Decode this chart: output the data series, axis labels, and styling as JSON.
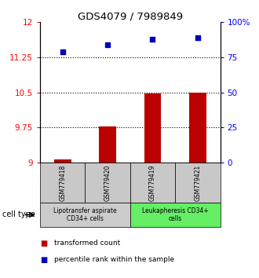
{
  "title": "GDS4079 / 7989849",
  "samples": [
    "GSM779418",
    "GSM779420",
    "GSM779419",
    "GSM779421"
  ],
  "transformed_counts": [
    9.07,
    9.78,
    10.47,
    10.5
  ],
  "percentile_ranks": [
    79,
    84,
    88,
    89
  ],
  "ylim_left": [
    9,
    12
  ],
  "ylim_right": [
    0,
    100
  ],
  "yticks_left": [
    9,
    9.75,
    10.5,
    11.25,
    12
  ],
  "yticks_left_labels": [
    "9",
    "9.75",
    "10.5",
    "11.25",
    "12"
  ],
  "yticks_right": [
    0,
    25,
    50,
    75,
    100
  ],
  "yticks_right_labels": [
    "0",
    "25",
    "50",
    "75",
    "100%"
  ],
  "hlines": [
    9.75,
    10.5,
    11.25
  ],
  "bar_color": "#bb0000",
  "dot_color": "#0000bb",
  "cell_type_groups": [
    {
      "label": "Lipotransfer aspirate\nCD34+ cells",
      "samples": [
        0,
        1
      ],
      "color": "#cccccc"
    },
    {
      "label": "Leukapheresis CD34+\ncells",
      "samples": [
        2,
        3
      ],
      "color": "#66ee66"
    }
  ],
  "legend_items": [
    {
      "label": "transformed count",
      "color": "#bb0000"
    },
    {
      "label": "percentile rank within the sample",
      "color": "#0000bb"
    }
  ],
  "cell_type_label": "cell type",
  "title_fontsize": 9.5,
  "tick_fontsize": 7.5,
  "sample_fontsize": 5.5,
  "celltype_fontsize": 5.5,
  "legend_fontsize": 6.5
}
